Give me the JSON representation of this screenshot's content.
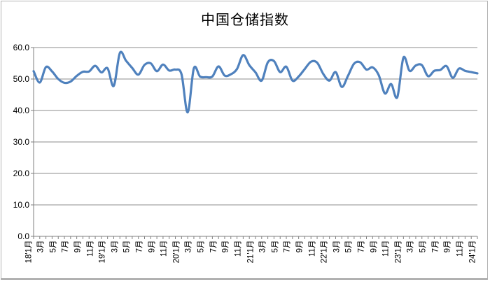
{
  "title": "中国仓储指数",
  "colors": {
    "line": "#4F81BD",
    "gridline": "#8c8c8c",
    "axis": "#7f7f7f",
    "frame_border": "#b3b3b3",
    "text": "#000000",
    "background": "#ffffff"
  },
  "chart_data": {
    "type": "line",
    "title": "中国仓储指数",
    "xlabel": "",
    "ylabel": "",
    "x_start": "2018-01",
    "x_freq": "monthly",
    "x_tick_labels": [
      "18'1月",
      "3月",
      "5月",
      "7月",
      "9月",
      "11月",
      "19'1月",
      "3月",
      "5月",
      "7月",
      "9月",
      "11月",
      "20'1月",
      "3月",
      "5月",
      "7月",
      "9月",
      "11月",
      "21'1月",
      "3月",
      "5月",
      "7月",
      "9月",
      "11月",
      "22'1月",
      "3月",
      "5月",
      "7月",
      "9月",
      "11月",
      "23'1月",
      "3月",
      "5月",
      "7月",
      "9月",
      "11月",
      "24'1月"
    ],
    "x_label_every_n_months": 2,
    "y_tick_labels": [
      "60.0",
      "50.0",
      "40.0",
      "30.0",
      "20.0",
      "10.0",
      "0.0"
    ],
    "ylim": [
      0,
      60
    ],
    "grid": true,
    "legend": false,
    "smooth_line": true,
    "series": [
      {
        "name": "中国仓储指数",
        "values": [
          52.5,
          48.9,
          53.8,
          52.4,
          50.0,
          48.8,
          49.2,
          51.0,
          52.3,
          52.4,
          54.2,
          52.1,
          53.4,
          47.8,
          58.3,
          55.8,
          53.5,
          51.4,
          54.5,
          55.0,
          52.5,
          54.6,
          52.7,
          53.0,
          51.5,
          39.4,
          53.4,
          50.8,
          50.6,
          50.8,
          54.0,
          51.1,
          51.5,
          53.2,
          57.6,
          54.4,
          52.1,
          49.5,
          55.3,
          55.7,
          52.2,
          53.9,
          49.5,
          50.8,
          53.2,
          55.5,
          55.2,
          51.6,
          49.5,
          52.2,
          47.5,
          51.0,
          54.9,
          55.3,
          53.0,
          53.7,
          51.2,
          45.4,
          48.4,
          44.2,
          56.8,
          52.6,
          54.3,
          54.4,
          50.9,
          52.6,
          52.9,
          54.1,
          50.4,
          53.3,
          52.6,
          52.2,
          51.8
        ]
      }
    ]
  }
}
